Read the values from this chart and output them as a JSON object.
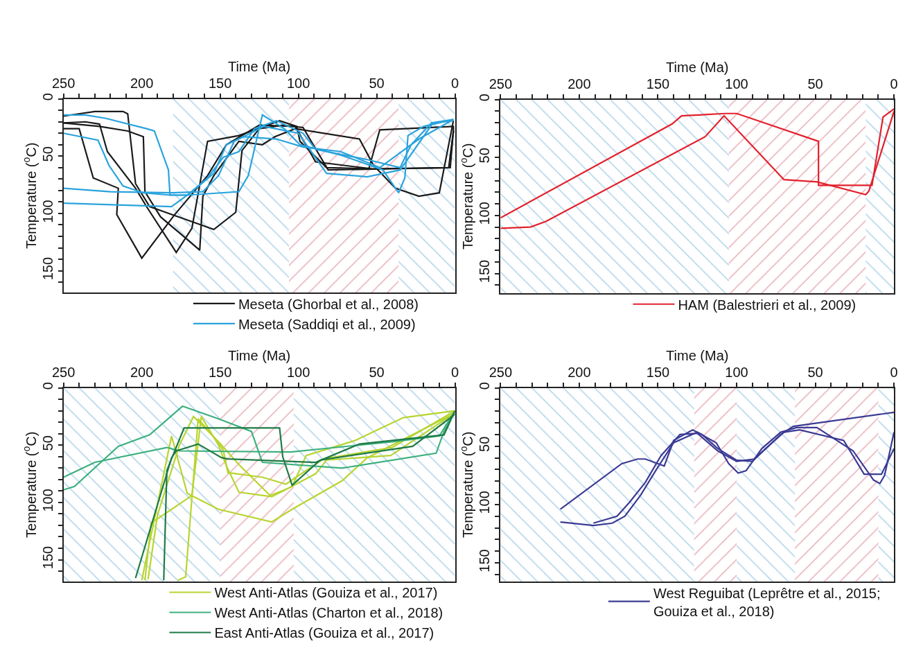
{
  "chart_data": [
    {
      "type": "line",
      "xlabel": "Time (Ma)",
      "ylabel": "Temperature ($^{o}$C)",
      "xlim": [
        250,
        0
      ],
      "ylim": [
        169,
        0
      ],
      "xticks": [
        250,
        {
          "value": 240,
          "label": null
        },
        {
          "value": 230,
          "label": null
        },
        {
          "value": 220,
          "label": null
        },
        {
          "value": 210,
          "label": null
        },
        200,
        {
          "value": 190,
          "label": null
        },
        {
          "value": 180,
          "label": null
        },
        {
          "value": 170,
          "label": null
        },
        {
          "value": 160,
          "label": null
        },
        150,
        {
          "value": 140,
          "label": null
        },
        {
          "value": 130,
          "label": null
        },
        {
          "value": 120,
          "label": null
        },
        {
          "value": 110,
          "label": null
        },
        100,
        {
          "value": 90,
          "label": null
        },
        {
          "value": 80,
          "label": null
        },
        {
          "value": 70,
          "label": null
        },
        {
          "value": 60,
          "label": null
        },
        50,
        {
          "value": 40,
          "label": null
        },
        {
          "value": 30,
          "label": null
        },
        {
          "value": 20,
          "label": null
        },
        {
          "value": 10,
          "label": null
        },
        0
      ],
      "yticks": [
        0,
        {
          "value": 10,
          "label": null
        },
        {
          "value": 20,
          "label": null
        },
        {
          "value": 30,
          "label": null
        },
        {
          "value": 40,
          "label": null
        },
        50,
        {
          "value": 60,
          "label": null
        },
        {
          "value": 70,
          "label": null
        },
        {
          "value": 80,
          "label": null
        },
        {
          "value": 90,
          "label": null
        },
        100,
        {
          "value": 110,
          "label": null
        },
        {
          "value": 120,
          "label": null
        },
        {
          "value": 130,
          "label": null
        },
        {
          "value": 140,
          "label": null
        },
        150,
        {
          "value": 160,
          "label": null
        }
      ],
      "legend": "bottom",
      "line_style": "solid",
      "marker": "none",
      "bands": [
        {
          "axis": "x",
          "from": 180,
          "to": 106,
          "color": "#6aaed6"
        },
        {
          "axis": "x",
          "from": 106,
          "to": 36,
          "color": "#d66a7a"
        },
        {
          "axis": "x",
          "from": 36,
          "to": 0,
          "color": "#6aaed6"
        }
      ],
      "series": [
        {
          "name": "Meseta (Ghorbal et al., 2008)",
          "color": "#1a1a1a",
          "x": [
            250,
            240,
            231,
            215,
            216,
            200,
            179,
            158,
            146,
            125,
            102,
            89,
            53,
            3,
            1
          ],
          "values": [
            26,
            26,
            69,
            78,
            101,
            139,
            101,
            67,
            40,
            23,
            24,
            55,
            61,
            60,
            28
          ]
        },
        {
          "color": "#1a1a1a",
          "x": [
            250,
            236,
            227,
            222,
            204,
            197,
            178,
            168,
            158,
            138,
            112,
            101,
            99,
            82,
            55,
            48,
            1,
            1
          ],
          "values": [
            21,
            20,
            22,
            46,
            78,
            94,
            134,
            113,
            37,
            32,
            19,
            24,
            37,
            60,
            61,
            27,
            24,
            30
          ]
        },
        {
          "color": "#1a1a1a",
          "x": [
            250,
            227,
            209,
            199,
            198,
            188,
            163,
            161,
            154,
            138,
            123,
            115,
            102,
            61,
            52,
            38,
            23,
            10,
            1
          ],
          "values": [
            21,
            24,
            28,
            33,
            81,
            103,
            132,
            85,
            67,
            37,
            40,
            33,
            26,
            35,
            58,
            78,
            85,
            82,
            19
          ]
        },
        {
          "color": "#1a1a1a",
          "x": [
            250,
            230,
            212,
            209,
            204,
            195,
            154,
            140,
            136,
            125,
            110,
            97,
            81,
            40,
            4,
            1
          ],
          "values": [
            15,
            11,
            11,
            13,
            74,
            94,
            114,
            99,
            45,
            26,
            23,
            25,
            62,
            61,
            60,
            28
          ]
        },
        {
          "name": "Meseta (Saddiqi et al., 2009)",
          "color": "#29a3dd",
          "x": [
            250,
            236,
            223,
            197,
            192,
            183,
            182,
            171,
            138,
            132,
            123,
            109,
            99,
            73,
            46,
            36,
            32,
            30,
            20,
            1
          ],
          "values": [
            14,
            14,
            17,
            26,
            28,
            62,
            84,
            84,
            81,
            67,
            14,
            26,
            40,
            49,
            62,
            82,
            69,
            32,
            24,
            18
          ]
        },
        {
          "color": "#29a3dd",
          "x": [
            250,
            228,
            221,
            212,
            199,
            182,
            171,
            158,
            148,
            138,
            128,
            114,
            97,
            89,
            56,
            35,
            28,
            15,
            1
          ],
          "values": [
            30,
            36,
            58,
            76,
            82,
            84,
            84,
            69,
            51,
            46,
            26,
            19,
            30,
            44,
            53,
            60,
            40,
            21,
            18
          ]
        },
        {
          "color": "#29a3dd",
          "x": [
            250,
            220,
            181,
            161,
            151,
            141,
            122,
            100,
            82,
            56,
            35,
            14,
            1
          ],
          "values": [
            78,
            81,
            82,
            81,
            67,
            37,
            24,
            30,
            65,
            68,
            62,
            21,
            19
          ]
        },
        {
          "color": "#29a3dd",
          "x": [
            250,
            181,
            168,
            154,
            146,
            135,
            114,
            97,
            73,
            48,
            23,
            1
          ],
          "values": [
            91,
            94,
            81,
            65,
            40,
            33,
            35,
            42,
            46,
            60,
            35,
            18
          ]
        }
      ]
    },
    {
      "type": "line",
      "xlabel": "Time (Ma)",
      "ylabel": "Temperature ($^{o}$C)",
      "xlim": [
        250,
        0
      ],
      "ylim": [
        167,
        0
      ],
      "xticks": [
        250,
        {
          "value": 240,
          "label": null
        },
        {
          "value": 230,
          "label": null
        },
        {
          "value": 220,
          "label": null
        },
        {
          "value": 210,
          "label": null
        },
        200,
        {
          "value": 190,
          "label": null
        },
        {
          "value": 180,
          "label": null
        },
        {
          "value": 170,
          "label": null
        },
        {
          "value": 160,
          "label": null
        },
        150,
        {
          "value": 140,
          "label": null
        },
        {
          "value": 130,
          "label": null
        },
        {
          "value": 120,
          "label": null
        },
        {
          "value": 110,
          "label": null
        },
        100,
        {
          "value": 90,
          "label": null
        },
        {
          "value": 80,
          "label": null
        },
        {
          "value": 70,
          "label": null
        },
        {
          "value": 60,
          "label": null
        },
        50,
        {
          "value": 40,
          "label": null
        },
        {
          "value": 30,
          "label": null
        },
        {
          "value": 20,
          "label": null
        },
        {
          "value": 10,
          "label": null
        },
        0
      ],
      "yticks": [
        0,
        {
          "value": 10,
          "label": null
        },
        {
          "value": 20,
          "label": null
        },
        {
          "value": 30,
          "label": null
        },
        {
          "value": 40,
          "label": null
        },
        50,
        {
          "value": 60,
          "label": null
        },
        {
          "value": 70,
          "label": null
        },
        {
          "value": 80,
          "label": null
        },
        {
          "value": 90,
          "label": null
        },
        100,
        {
          "value": 110,
          "label": null
        },
        {
          "value": 120,
          "label": null
        },
        {
          "value": 130,
          "label": null
        },
        {
          "value": 140,
          "label": null
        },
        150,
        {
          "value": 160,
          "label": null
        }
      ],
      "legend": "bottom",
      "line_style": "solid",
      "marker": "none",
      "bands": [
        {
          "axis": "x",
          "from": 250,
          "to": 105,
          "color": "#6aaed6"
        },
        {
          "axis": "x",
          "from": 105,
          "to": 18,
          "color": "#d66a7a"
        },
        {
          "axis": "x",
          "from": 18,
          "to": 0,
          "color": "#6aaed6"
        }
      ],
      "series": [
        {
          "name": "HAM (Balestrieri et al., 2009)",
          "color": "#e3202b",
          "x": [
            250,
            141,
            135,
            107,
            100,
            87,
            48,
            48,
            14,
            7,
            0
          ],
          "values": [
            102,
            21,
            14,
            12,
            12,
            18,
            36,
            74,
            74,
            15,
            8
          ]
        },
        {
          "color": "#e3202b",
          "x": [
            250,
            231,
            221,
            120,
            108,
            70,
            49,
            18,
            16,
            0
          ],
          "values": [
            111,
            110,
            105,
            32,
            14,
            69,
            71,
            82,
            79,
            10
          ]
        }
      ]
    },
    {
      "type": "line",
      "xlabel": "Time (Ma)",
      "ylabel": "Temperature ($^{o}$C)",
      "xlim": [
        250,
        0
      ],
      "ylim": [
        169,
        0
      ],
      "xticks": [
        250,
        {
          "value": 240,
          "label": null
        },
        {
          "value": 230,
          "label": null
        },
        {
          "value": 220,
          "label": null
        },
        {
          "value": 210,
          "label": null
        },
        200,
        {
          "value": 190,
          "label": null
        },
        {
          "value": 180,
          "label": null
        },
        {
          "value": 170,
          "label": null
        },
        {
          "value": 160,
          "label": null
        },
        150,
        {
          "value": 140,
          "label": null
        },
        {
          "value": 130,
          "label": null
        },
        {
          "value": 120,
          "label": null
        },
        {
          "value": 110,
          "label": null
        },
        100,
        {
          "value": 90,
          "label": null
        },
        {
          "value": 80,
          "label": null
        },
        {
          "value": 70,
          "label": null
        },
        {
          "value": 60,
          "label": null
        },
        50,
        {
          "value": 40,
          "label": null
        },
        {
          "value": 30,
          "label": null
        },
        {
          "value": 20,
          "label": null
        },
        {
          "value": 10,
          "label": null
        },
        0
      ],
      "yticks": [
        0,
        {
          "value": 10,
          "label": null
        },
        {
          "value": 20,
          "label": null
        },
        {
          "value": 30,
          "label": null
        },
        {
          "value": 40,
          "label": null
        },
        50,
        {
          "value": 60,
          "label": null
        },
        {
          "value": 70,
          "label": null
        },
        {
          "value": 80,
          "label": null
        },
        {
          "value": 90,
          "label": null
        },
        100,
        {
          "value": 110,
          "label": null
        },
        {
          "value": 120,
          "label": null
        },
        {
          "value": 130,
          "label": null
        },
        {
          "value": 140,
          "label": null
        },
        150,
        {
          "value": 160,
          "label": null
        }
      ],
      "legend": "bottom",
      "line_style": "solid",
      "marker": "none",
      "bands": [
        {
          "axis": "x",
          "from": 250,
          "to": 150,
          "color": "#6aaed6"
        },
        {
          "axis": "x",
          "from": 150,
          "to": 103,
          "color": "#d66a7a"
        },
        {
          "axis": "x",
          "from": 103,
          "to": 0,
          "color": "#6aaed6"
        }
      ],
      "series": [
        {
          "name": "West Anti-Atlas (Gouiza et al., 2017)",
          "color": "#b8d430",
          "x": [
            198,
            194,
            168,
            162,
            151,
            146,
            138,
            117,
            104,
            95,
            64,
            33,
            0
          ],
          "values": [
            168,
            118,
            94,
            25,
            50,
            68,
            91,
            95,
            86,
            59,
            46,
            26,
            20
          ]
        },
        {
          "color": "#b8d430",
          "x": [
            200,
            181,
            171,
            151,
            117,
            104,
            72,
            56,
            0
          ],
          "values": [
            168,
            42,
            92,
            106,
            117,
            106,
            81,
            61,
            22
          ]
        },
        {
          "color": "#b8d430",
          "x": [
            177,
            172,
            164,
            154,
            148,
            145,
            123,
            108,
            84,
            40,
            0
          ],
          "values": [
            168,
            165,
            27,
            43,
            54,
            74,
            78,
            84,
            62,
            52,
            20
          ]
        },
        {
          "color": "#b8d430",
          "x": [
            196,
            190,
            176,
            167,
            151,
            138,
            118,
            107,
            89,
            82,
            41,
            0
          ],
          "values": [
            167,
            111,
            50,
            25,
            47,
            67,
            94,
            88,
            75,
            63,
            59,
            22
          ]
        },
        {
          "name": "West Anti-Atlas (Charton et al., 2018)",
          "color": "#3db07e",
          "x": [
            250,
            243,
            215,
            195,
            174,
            151,
            130,
            123,
            72,
            12,
            7,
            0
          ],
          "values": [
            89,
            86,
            51,
            41,
            16,
            27,
            38,
            65,
            70,
            57,
            38,
            20
          ]
        },
        {
          "color": "#3db07e",
          "x": [
            250,
            230,
            184,
            176,
            105,
            40,
            10,
            0
          ],
          "values": [
            78,
            65,
            52,
            55,
            56,
            47,
            42,
            20
          ]
        },
        {
          "name": "East Anti-Atlas (Gouiza et al., 2017)",
          "color": "#1d7a45",
          "x": [
            204,
            181,
            178,
            164,
            149,
            145,
            89,
            61,
            7,
            0
          ],
          "values": [
            166,
            61,
            55,
            49,
            61,
            62,
            65,
            49,
            41,
            20
          ]
        },
        {
          "color": "#1d7a45",
          "x": [
            186,
            184,
            173,
            112,
            110,
            104,
            86,
            27,
            0
          ],
          "values": [
            168,
            72,
            35,
            35,
            60,
            85,
            63,
            51,
            23
          ]
        }
      ]
    },
    {
      "type": "line",
      "xlabel": "Time (Ma)",
      "ylabel": "Temperature ($^{o}$C)",
      "xlim": [
        250,
        0
      ],
      "ylim": [
        166,
        0
      ],
      "xticks": [
        250,
        {
          "value": 240,
          "label": null
        },
        {
          "value": 230,
          "label": null
        },
        {
          "value": 220,
          "label": null
        },
        {
          "value": 210,
          "label": null
        },
        200,
        {
          "value": 190,
          "label": null
        },
        {
          "value": 180,
          "label": null
        },
        {
          "value": 170,
          "label": null
        },
        {
          "value": 160,
          "label": null
        },
        150,
        {
          "value": 140,
          "label": null
        },
        {
          "value": 130,
          "label": null
        },
        {
          "value": 120,
          "label": null
        },
        {
          "value": 110,
          "label": null
        },
        100,
        {
          "value": 90,
          "label": null
        },
        {
          "value": 80,
          "label": null
        },
        {
          "value": 70,
          "label": null
        },
        {
          "value": 60,
          "label": null
        },
        50,
        {
          "value": 40,
          "label": null
        },
        {
          "value": 30,
          "label": null
        },
        {
          "value": 20,
          "label": null
        },
        {
          "value": 10,
          "label": null
        },
        0
      ],
      "yticks": [
        0,
        {
          "value": 10,
          "label": null
        },
        {
          "value": 20,
          "label": null
        },
        {
          "value": 30,
          "label": null
        },
        {
          "value": 40,
          "label": null
        },
        50,
        {
          "value": 60,
          "label": null
        },
        {
          "value": 70,
          "label": null
        },
        {
          "value": 80,
          "label": null
        },
        {
          "value": 90,
          "label": null
        },
        100,
        {
          "value": 110,
          "label": null
        },
        {
          "value": 120,
          "label": null
        },
        {
          "value": 130,
          "label": null
        },
        {
          "value": 140,
          "label": null
        },
        150,
        {
          "value": 160,
          "label": null
        }
      ],
      "legend": "bottom",
      "line_style": "solid",
      "marker": "none",
      "bands": [
        {
          "axis": "x",
          "from": 250,
          "to": 127,
          "color": "#6aaed6"
        },
        {
          "axis": "x",
          "from": 127,
          "to": 100,
          "color": "#d66a7a"
        },
        {
          "axis": "x",
          "from": 100,
          "to": 63,
          "color": "#6aaed6"
        },
        {
          "axis": "x",
          "from": 63,
          "to": 10,
          "color": "#d66a7a"
        },
        {
          "axis": "x",
          "from": 10,
          "to": 0,
          "color": "#6aaed6"
        }
      ],
      "series": [
        {
          "name": "West Reguibat (Leprêtre et al., 2015;\nGouiza et al., 2018)",
          "color": "#3b3b94",
          "x": [
            212,
            173,
            163,
            158,
            146,
            140,
            128,
            122,
            112,
            100,
            90,
            72,
            64,
            0
          ],
          "values": [
            104,
            65,
            61,
            61,
            67,
            45,
            36,
            40,
            52,
            62,
            63,
            40,
            33,
            21
          ]
        },
        {
          "color": "#3b3b94",
          "x": [
            212,
            191,
            179,
            171,
            161,
            151,
            140,
            125,
            113,
            105,
            99,
            94,
            84,
            72,
            62,
            49,
            26,
            13,
            9,
            6,
            0
          ],
          "values": [
            115,
            118,
            116,
            110,
            92,
            70,
            47,
            38,
            47,
            65,
            73,
            71,
            52,
            38,
            34,
            34,
            54,
            79,
            82,
            75,
            38
          ]
        },
        {
          "color": "#3b3b94",
          "x": [
            191,
            176,
            168,
            158,
            148,
            136,
            125,
            112,
            100,
            89,
            70,
            60,
            32,
            19,
            8,
            0
          ],
          "values": [
            116,
            110,
            98,
            81,
            58,
            40,
            39,
            54,
            63,
            61,
            38,
            36,
            45,
            74,
            74,
            52
          ]
        }
      ]
    }
  ]
}
